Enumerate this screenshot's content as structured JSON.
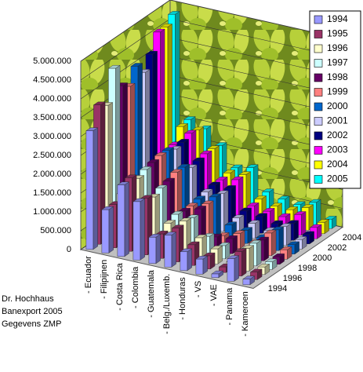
{
  "chart_data": {
    "type": "bar3d",
    "categories": [
      "- Ecuador",
      "- Filipijnen",
      "- Costa Rica",
      "- Colombia",
      "- Guatemala",
      "- Belg./Luxemb.",
      "- Honduras",
      "- VS",
      "- VAE",
      "- Panama",
      "- Kameroen"
    ],
    "series": [
      {
        "name": "1994",
        "color": "#9999ff",
        "values": [
          3150000,
          1150000,
          1900000,
          1550000,
          700000,
          850000,
          500000,
          400000,
          100000,
          600000,
          150000
        ]
      },
      {
        "name": "1995",
        "color": "#993366",
        "values": [
          3700000,
          1150000,
          1950000,
          1500000,
          650000,
          900000,
          550000,
          350000,
          150000,
          650000,
          200000
        ]
      },
      {
        "name": "1996",
        "color": "#ffffcc",
        "values": [
          3550000,
          1300000,
          1800000,
          1400000,
          800000,
          950000,
          600000,
          400000,
          150000,
          600000,
          200000
        ]
      },
      {
        "name": "1997",
        "color": "#ccffff",
        "values": [
          4400000,
          1200000,
          1900000,
          1500000,
          900000,
          900000,
          500000,
          350000,
          200000,
          600000,
          200000
        ]
      },
      {
        "name": "1998",
        "color": "#660066",
        "values": [
          3800000,
          1100000,
          1950000,
          1550000,
          850000,
          1000000,
          350000,
          400000,
          200000,
          550000,
          200000
        ]
      },
      {
        "name": "1999",
        "color": "#ff8080",
        "values": [
          3650000,
          1150000,
          2000000,
          1650000,
          850000,
          1000000,
          250000,
          400000,
          250000,
          600000,
          250000
        ]
      },
      {
        "name": "2000",
        "color": "#0066cc",
        "values": [
          4050000,
          1100000,
          2000000,
          1650000,
          900000,
          1050000,
          400000,
          350000,
          250000,
          550000,
          250000
        ]
      },
      {
        "name": "2001",
        "color": "#ccccff",
        "values": [
          3750000,
          1200000,
          1900000,
          1500000,
          950000,
          1000000,
          450000,
          400000,
          300000,
          500000,
          250000
        ]
      },
      {
        "name": "2002",
        "color": "#000080",
        "values": [
          4100000,
          1150000,
          1950000,
          1550000,
          1000000,
          1000000,
          500000,
          450000,
          350000,
          450000,
          250000
        ]
      },
      {
        "name": "2003",
        "color": "#ff00ff",
        "values": [
          4550000,
          1650000,
          2050000,
          1600000,
          1000000,
          1100000,
          500000,
          450000,
          400000,
          550000,
          300000
        ]
      },
      {
        "name": "2004",
        "color": "#ffff00",
        "values": [
          4550000,
          2000000,
          2000000,
          1600000,
          1050000,
          1100000,
          550000,
          450000,
          450000,
          600000,
          300000
        ]
      },
      {
        "name": "2005",
        "color": "#00ffff",
        "values": [
          4750000,
          2050000,
          1900000,
          1550000,
          1050000,
          1150000,
          600000,
          500000,
          450000,
          600000,
          250000
        ]
      }
    ],
    "ylim": [
      0,
      5000000
    ],
    "yticks": [
      {
        "value": 0,
        "label": "0"
      },
      {
        "value": 500000,
        "label": "500.000"
      },
      {
        "value": 1000000,
        "label": "1.000.000"
      },
      {
        "value": 1500000,
        "label": "1.500.000"
      },
      {
        "value": 2000000,
        "label": "2.000.000"
      },
      {
        "value": 2500000,
        "label": "2.500.000"
      },
      {
        "value": 3000000,
        "label": "3.000.000"
      },
      {
        "value": 3500000,
        "label": "3.500.000"
      },
      {
        "value": 4000000,
        "label": "4.000.000"
      },
      {
        "value": 4500000,
        "label": "4.500.000"
      },
      {
        "value": 5000000,
        "label": "5.000.000"
      }
    ],
    "grid": true,
    "legend": "top-right",
    "note": [
      "Dr. Hochhaus",
      "Banexport 2005",
      "Gegevens ZMP"
    ]
  }
}
